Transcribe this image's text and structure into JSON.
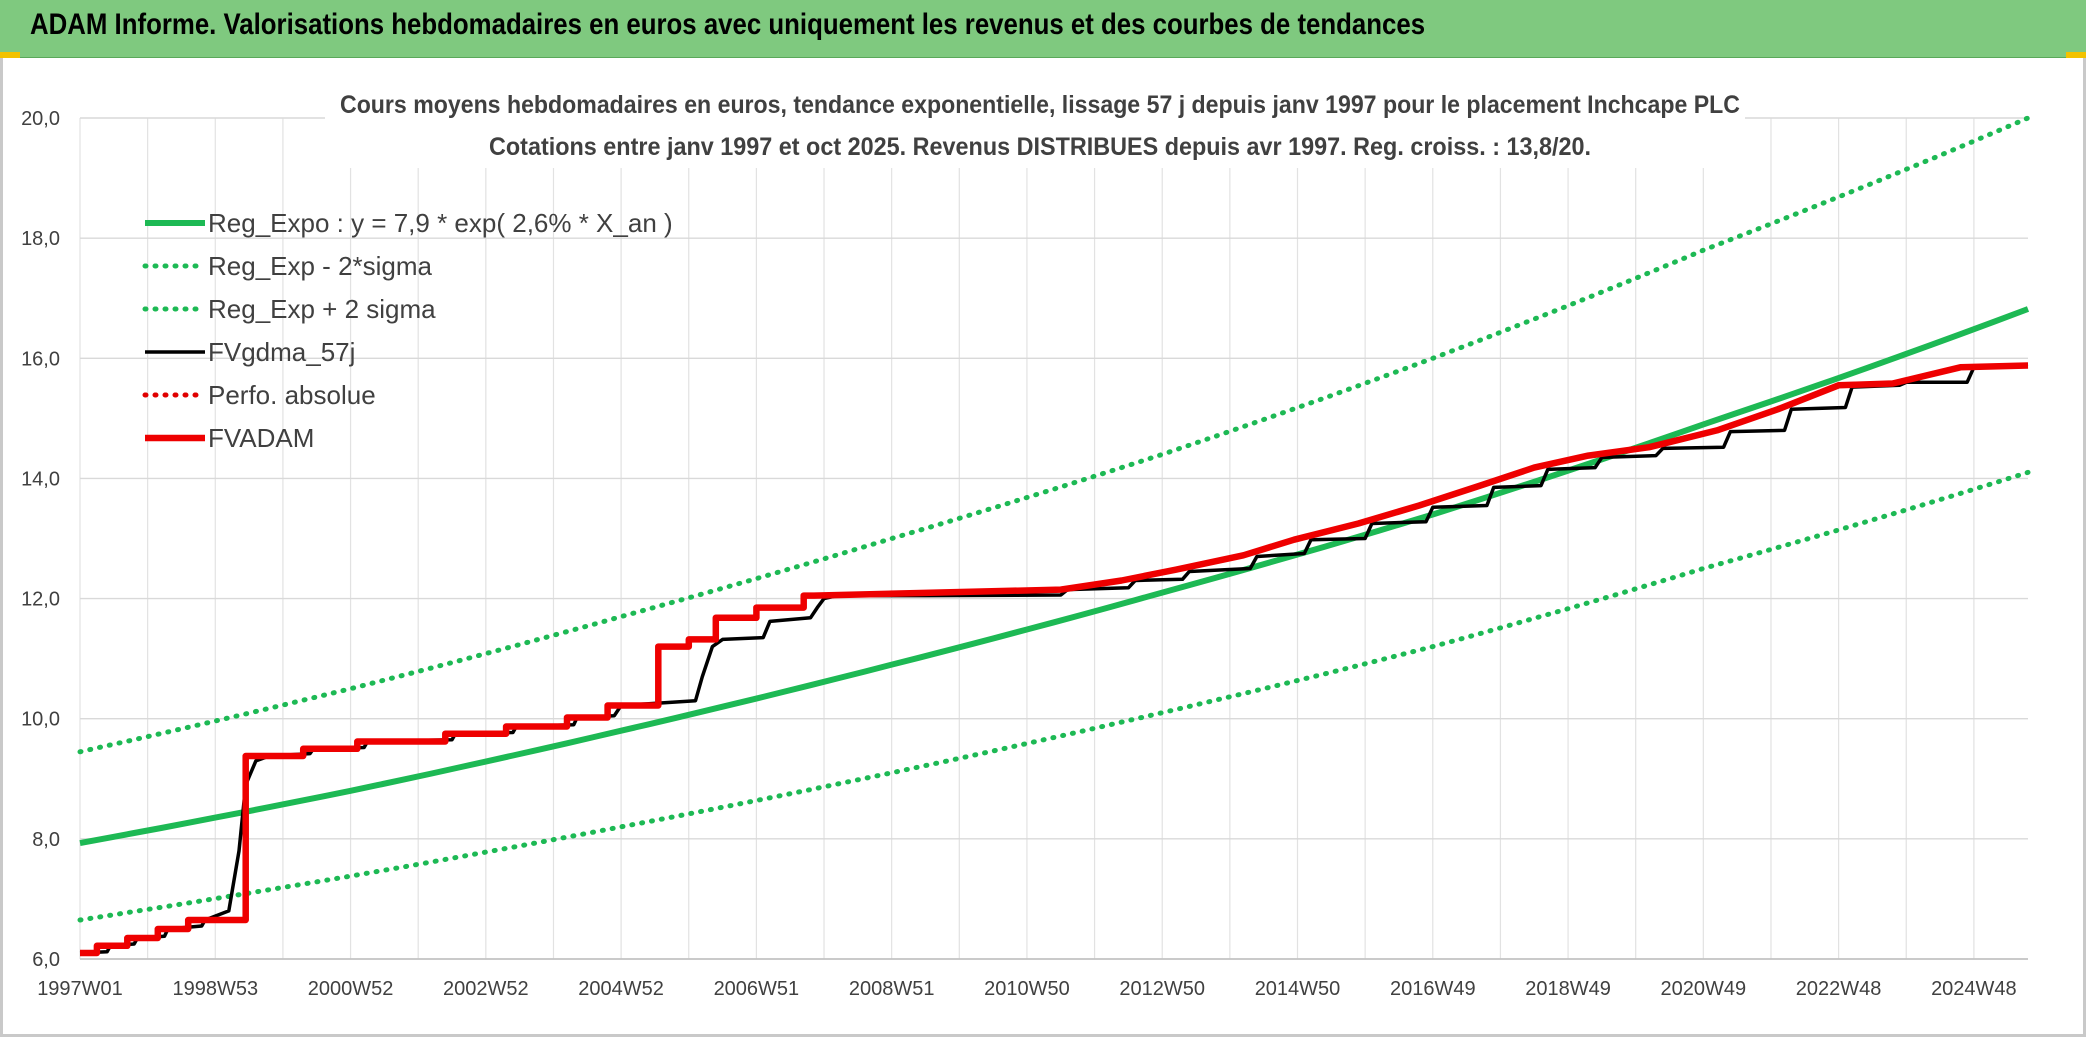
{
  "header": {
    "title": "ADAM Informe. Valorisations hebdomadaires en euros avec uniquement les revenus et des courbes de tendances"
  },
  "chart_data": {
    "type": "line",
    "title": "Cours moyens hebdomadaires en euros, tendance exponentielle, lissage 57 j depuis janv 1997 pour le placement Inchcape PLC",
    "subtitle": "Cotations entre janv 1997 et oct 2025. Revenus DISTRIBUES depuis avr 1997. Reg. croiss. : 13,8/20.",
    "xlabel": "",
    "ylabel": "",
    "ylim": [
      6,
      20
    ],
    "yticks": [
      "6,0",
      "8,0",
      "10,0",
      "12,0",
      "14,0",
      "16,0",
      "18,0",
      "20,0"
    ],
    "xlim": [
      1997.0,
      2025.8
    ],
    "x_tick_labels": [
      "1997W01",
      "1998W53",
      "2000W52",
      "2002W52",
      "2004W52",
      "2006W51",
      "2008W51",
      "2010W50",
      "2012W50",
      "2014W50",
      "2016W49",
      "2018W49",
      "2020W49",
      "2022W48",
      "2024W48"
    ],
    "x_tick_years": [
      1997.0,
      1999.0,
      2001.0,
      2003.0,
      2005.0,
      2007.0,
      2009.0,
      2011.0,
      2013.0,
      2015.0,
      2017.0,
      2019.0,
      2021.0,
      2023.0,
      2025.0
    ],
    "grid": true,
    "legend_position": "top-left",
    "series": [
      {
        "name": "Reg_Expo : y = 7,9 * exp( 2,6% *  X_an )",
        "color": "#1db954",
        "style": "solid",
        "x": [
          1997.0,
          2001.0,
          2005.0,
          2009.0,
          2013.0,
          2017.0,
          2021.0,
          2025.8
        ],
        "values": [
          7.93,
          8.8,
          9.8,
          10.9,
          12.1,
          13.4,
          14.9,
          16.82
        ]
      },
      {
        "name": "Reg_Exp - 2*sigma",
        "color": "#1db954",
        "style": "dotted",
        "x": [
          1997.0,
          2001.0,
          2005.0,
          2009.0,
          2013.0,
          2017.0,
          2021.0,
          2025.8
        ],
        "values": [
          6.65,
          7.38,
          8.2,
          9.1,
          10.1,
          11.2,
          12.5,
          14.1
        ]
      },
      {
        "name": "Reg_Exp + 2 sigma",
        "color": "#1db954",
        "style": "dotted",
        "x": [
          1997.0,
          2001.0,
          2005.0,
          2009.0,
          2013.0,
          2017.0,
          2021.0,
          2025.8
        ],
        "values": [
          9.45,
          10.5,
          11.7,
          13.0,
          14.4,
          16.0,
          17.8,
          20.0
        ]
      },
      {
        "name": "FVgdma_57j",
        "color": "#000000",
        "style": "solid",
        "x": [
          1997.0,
          1997.4,
          1997.45,
          1997.8,
          1997.85,
          1998.25,
          1998.3,
          1998.8,
          1998.85,
          1999.2,
          1999.35,
          1999.45,
          1999.6,
          1999.8,
          2000.4,
          2000.45,
          2001.2,
          2001.25,
          2002.5,
          2002.55,
          2003.4,
          2003.45,
          2004.3,
          2004.35,
          2004.9,
          2005.0,
          2006.1,
          2006.2,
          2006.35,
          2006.5,
          2007.1,
          2007.2,
          2007.8,
          2007.9,
          2008.0,
          2008.2,
          2009.5,
          2011.5,
          2011.6,
          2012.5,
          2012.6,
          2013.3,
          2013.4,
          2014.3,
          2014.4,
          2015.1,
          2015.2,
          2016.0,
          2016.1,
          2016.9,
          2017.0,
          2017.8,
          2017.9,
          2018.6,
          2018.7,
          2019.4,
          2019.5,
          2020.3,
          2020.4,
          2021.3,
          2021.4,
          2022.2,
          2022.3,
          2023.1,
          2023.2,
          2023.9,
          2024.0,
          2024.9,
          2025.0,
          2025.8
        ],
        "values": [
          6.1,
          6.12,
          6.22,
          6.25,
          6.35,
          6.38,
          6.5,
          6.55,
          6.65,
          6.8,
          7.8,
          8.9,
          9.3,
          9.38,
          9.42,
          9.5,
          9.52,
          9.62,
          9.65,
          9.75,
          9.77,
          9.87,
          9.9,
          10.02,
          10.05,
          10.22,
          10.3,
          10.7,
          11.2,
          11.32,
          11.35,
          11.62,
          11.68,
          11.85,
          12.0,
          12.05,
          12.05,
          12.06,
          12.15,
          12.18,
          12.3,
          12.32,
          12.45,
          12.5,
          12.7,
          12.75,
          12.98,
          13.0,
          13.25,
          13.28,
          13.52,
          13.55,
          13.85,
          13.88,
          14.15,
          14.18,
          14.35,
          14.38,
          14.5,
          14.52,
          14.78,
          14.8,
          15.15,
          15.18,
          15.52,
          15.55,
          15.6,
          15.6,
          15.85,
          15.9
        ]
      },
      {
        "name": "Perfo. absolue",
        "color": "#e00000",
        "style": "dotted",
        "x": [],
        "values": []
      },
      {
        "name": "FVADAM",
        "color": "#ee0000",
        "style": "solid",
        "x": [
          1997.0,
          1997.25,
          1997.25,
          1997.7,
          1997.7,
          1998.15,
          1998.15,
          1998.6,
          1998.6,
          1999.45,
          1999.45,
          2000.3,
          2000.3,
          2001.1,
          2001.1,
          2002.4,
          2002.4,
          2003.3,
          2003.3,
          2004.2,
          2004.2,
          2004.8,
          2004.8,
          2005.55,
          2005.55,
          2006.0,
          2006.0,
          2006.4,
          2006.4,
          2007.0,
          2007.0,
          2007.7,
          2007.7,
          2007.85,
          2007.85,
          2011.5,
          2011.5,
          2012.4,
          2012.4,
          2013.2,
          2013.2,
          2014.2,
          2014.2,
          2014.95,
          2014.95,
          2015.9,
          2015.9,
          2016.8,
          2016.8,
          2017.7,
          2017.7,
          2018.5,
          2018.5,
          2019.3,
          2019.3,
          2020.2,
          2020.2,
          2021.2,
          2021.2,
          2022.1,
          2022.1,
          2023.0,
          2023.0,
          2023.8,
          2023.8,
          2024.8,
          2024.8,
          2025.8
        ],
        "values": [
          6.1,
          6.1,
          6.22,
          6.22,
          6.35,
          6.35,
          6.5,
          6.5,
          6.65,
          6.65,
          9.38,
          9.38,
          9.5,
          9.5,
          9.62,
          9.62,
          9.75,
          9.75,
          9.87,
          9.87,
          10.02,
          10.02,
          10.22,
          10.22,
          11.2,
          11.2,
          11.32,
          11.32,
          11.68,
          11.68,
          11.85,
          11.85,
          12.05,
          12.05,
          12.05,
          12.15,
          12.15,
          12.3,
          12.3,
          12.48,
          12.48,
          12.72,
          12.72,
          12.98,
          12.98,
          13.25,
          13.25,
          13.55,
          13.55,
          13.88,
          13.88,
          14.18,
          14.18,
          14.38,
          14.38,
          14.52,
          14.52,
          14.8,
          14.8,
          15.15,
          15.15,
          15.55,
          15.55,
          15.58,
          15.58,
          15.85,
          15.85,
          15.88
        ]
      }
    ]
  }
}
